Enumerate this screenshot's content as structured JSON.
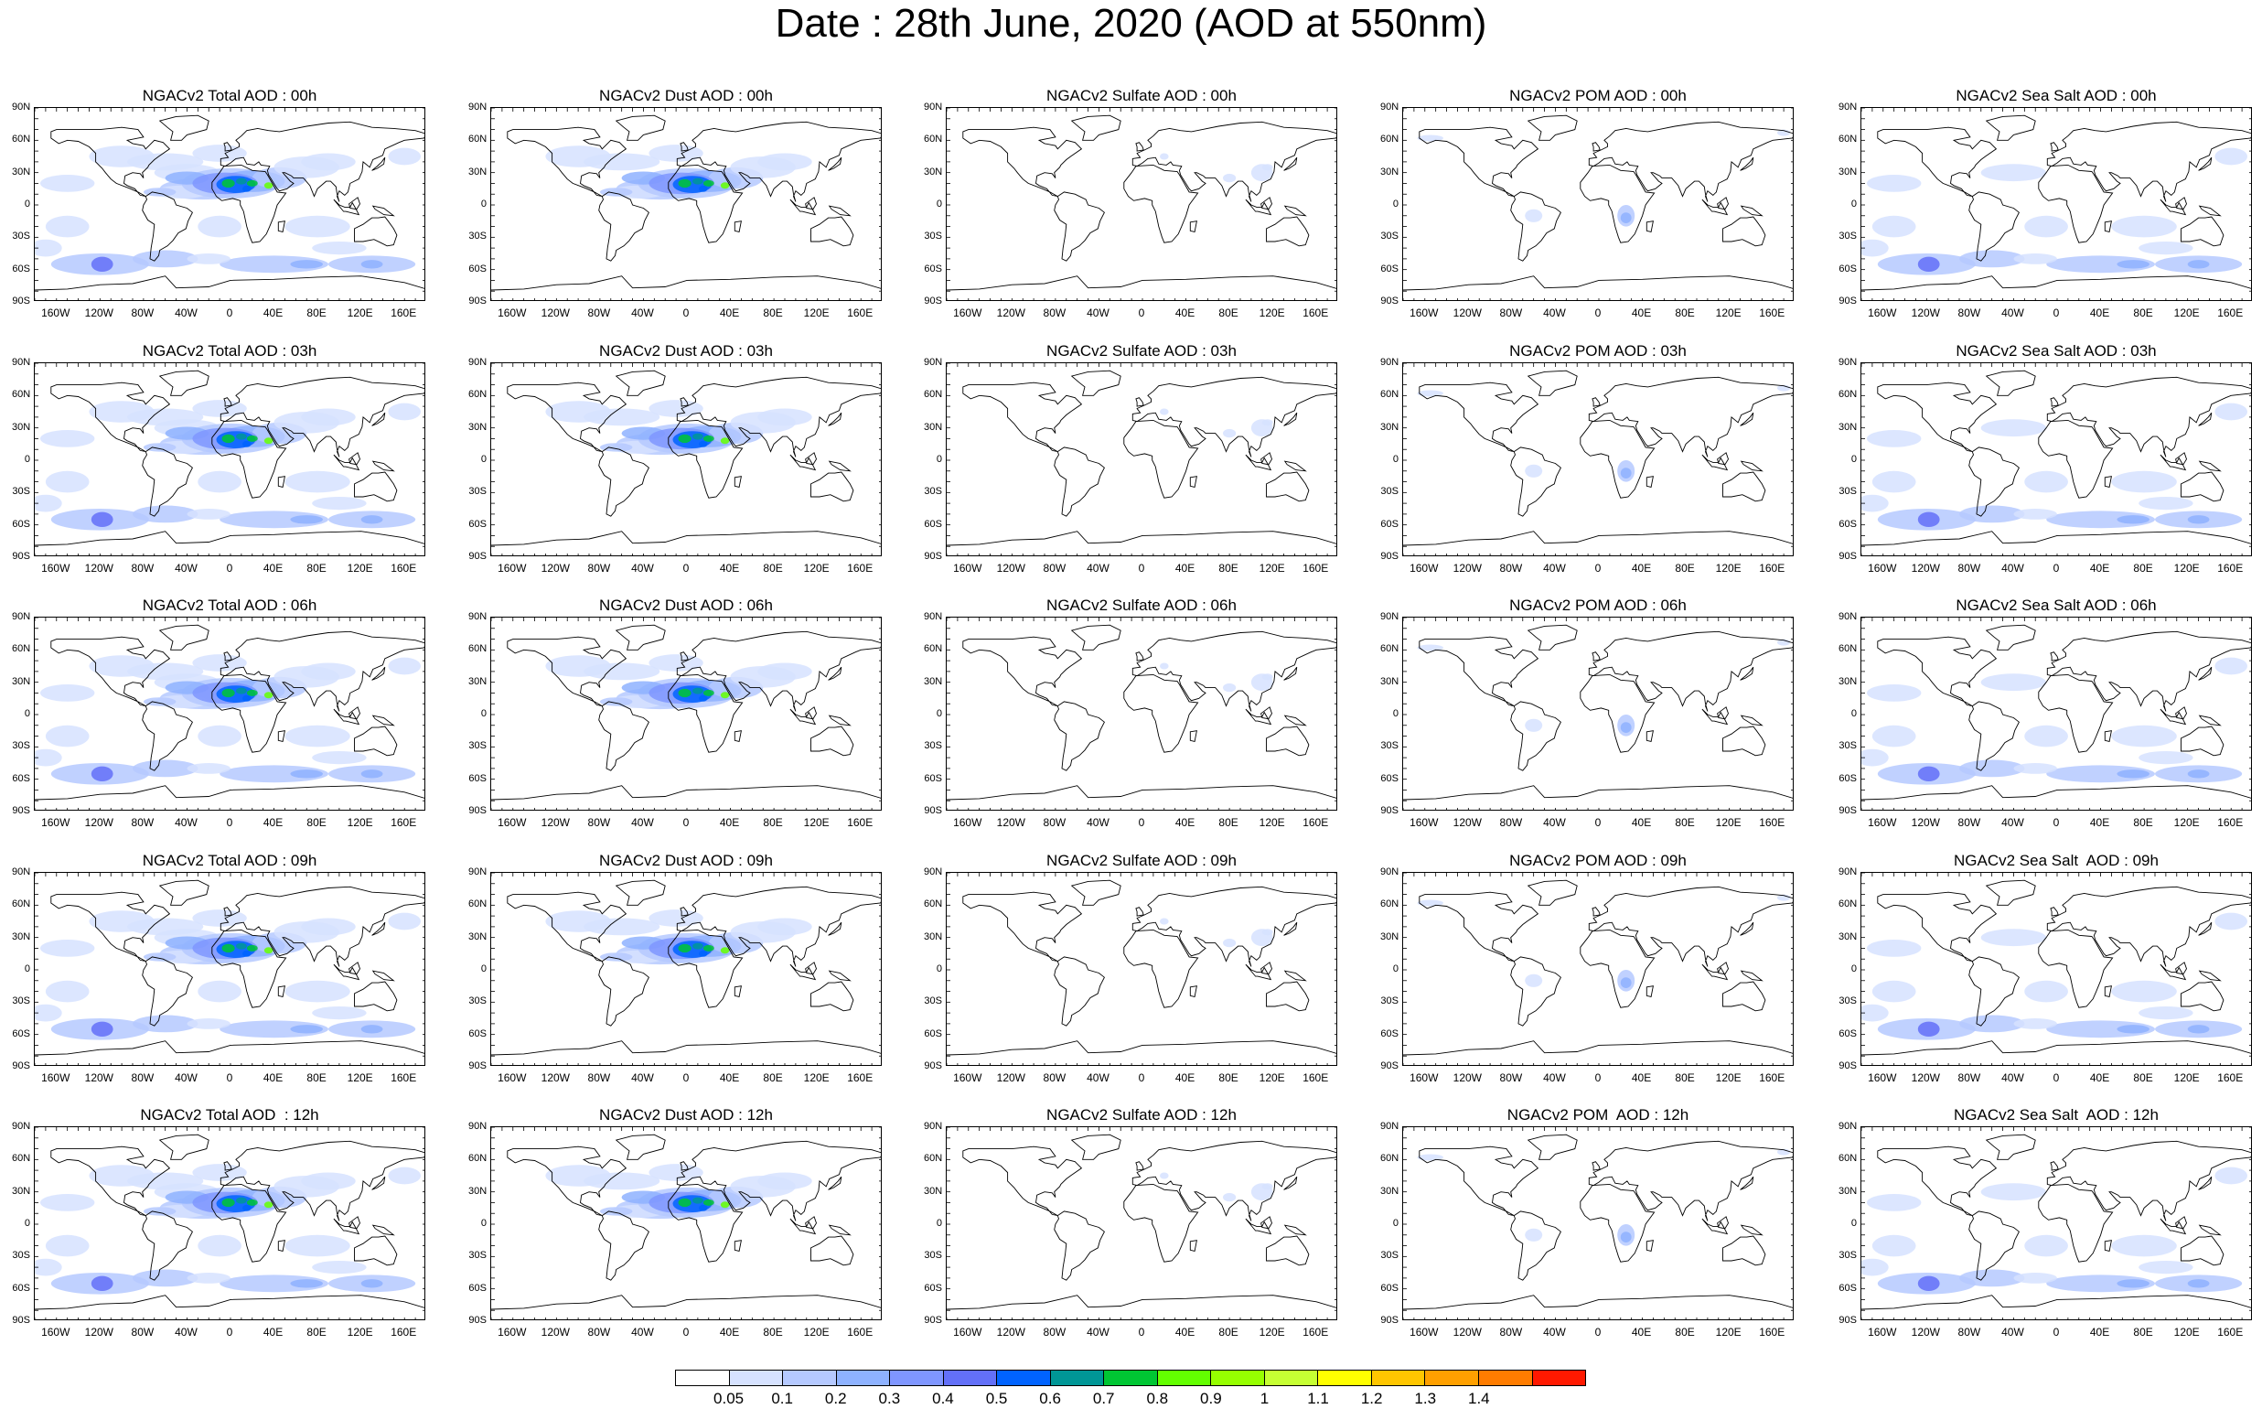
{
  "title": "Date : 28th June, 2020 (AOD at 550nm)",
  "lat_ticks": [
    "90N",
    "60N",
    "30N",
    "0",
    "30S",
    "60S",
    "90S"
  ],
  "lon_ticks": [
    "160W",
    "120W",
    "80W",
    "40W",
    "0",
    "40E",
    "80E",
    "120E",
    "160E"
  ],
  "panels": [
    {
      "title": "NGACv2 Total AOD : 00h",
      "species": "total"
    },
    {
      "title": "NGACv2 Dust AOD : 00h",
      "species": "dust"
    },
    {
      "title": "NGACv2 Sulfate AOD : 00h",
      "species": "sulfate"
    },
    {
      "title": "NGACv2 POM AOD : 00h",
      "species": "pom"
    },
    {
      "title": "NGACv2 Sea Salt AOD : 00h",
      "species": "seasalt"
    },
    {
      "title": "NGACv2 Total AOD : 03h",
      "species": "total"
    },
    {
      "title": "NGACv2 Dust AOD : 03h",
      "species": "dust"
    },
    {
      "title": "NGACv2 Sulfate AOD : 03h",
      "species": "sulfate"
    },
    {
      "title": "NGACv2 POM AOD : 03h",
      "species": "pom"
    },
    {
      "title": "NGACv2 Sea Salt AOD : 03h",
      "species": "seasalt"
    },
    {
      "title": "NGACv2 Total AOD : 06h",
      "species": "total"
    },
    {
      "title": "NGACv2 Dust AOD : 06h",
      "species": "dust"
    },
    {
      "title": "NGACv2 Sulfate AOD : 06h",
      "species": "sulfate"
    },
    {
      "title": "NGACv2 POM AOD : 06h",
      "species": "pom"
    },
    {
      "title": "NGACv2 Sea Salt AOD : 06h",
      "species": "seasalt"
    },
    {
      "title": "NGACv2 Total AOD : 09h",
      "species": "total"
    },
    {
      "title": "NGACv2 Dust AOD : 09h",
      "species": "dust"
    },
    {
      "title": "NGACv2 Sulfate AOD : 09h",
      "species": "sulfate"
    },
    {
      "title": "NGACv2 POM AOD : 09h",
      "species": "pom"
    },
    {
      "title": "NGACv2 Sea Salt  AOD : 09h",
      "species": "seasalt"
    },
    {
      "title": "NGACv2 Total AOD  : 12h",
      "species": "total"
    },
    {
      "title": "NGACv2 Dust AOD : 12h",
      "species": "dust"
    },
    {
      "title": "NGACv2 Sulfate AOD : 12h",
      "species": "sulfate"
    },
    {
      "title": "NGACv2 POM  AOD : 12h",
      "species": "pom"
    },
    {
      "title": "NGACv2 Sea Salt  AOD : 12h",
      "species": "seasalt"
    }
  ],
  "colorbar": {
    "colors": [
      "#ffffff",
      "#d6e2ff",
      "#b5c9ff",
      "#8eb2ff",
      "#7f96ff",
      "#6370f8",
      "#0063ff",
      "#009696",
      "#00c633",
      "#63ff00",
      "#96ff00",
      "#c6ff33",
      "#ffff00",
      "#ffc600",
      "#ffa000",
      "#ff7c00",
      "#ff1900"
    ],
    "labels": [
      "0.05",
      "0.1",
      "0.2",
      "0.3",
      "0.4",
      "0.5",
      "0.6",
      "0.7",
      "0.8",
      "0.9",
      "1",
      "1.1",
      "1.2",
      "1.3",
      "1.4"
    ]
  }
}
